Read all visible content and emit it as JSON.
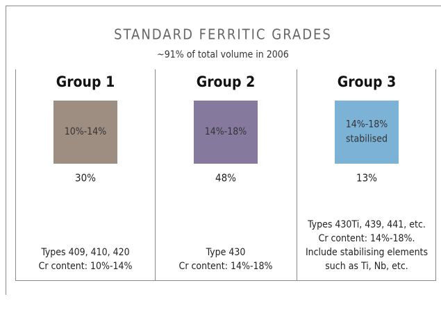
{
  "header": {
    "title": "STANDARD FERRITIC GRADES",
    "subtitle": "~91% of total volume in 2006"
  },
  "groups": [
    {
      "name": "Group 1",
      "color": "#9e8e82",
      "range": [
        "10%-14%"
      ],
      "share": "30%",
      "description": [
        "Types 409, 410, 420",
        "Cr content: 10%-14%"
      ]
    },
    {
      "name": "Group 2",
      "color": "#857a9e",
      "range": [
        "14%-18%"
      ],
      "share": "48%",
      "description": [
        "Type 430",
        "Cr content: 14%-18%"
      ]
    },
    {
      "name": "Group 3",
      "color": "#7cb2d6",
      "range": [
        "14%-18%",
        "stabilised"
      ],
      "share": "13%",
      "description": [
        "Types 430Ti, 439, 441, etc.",
        "Cr content: 14%-18%.",
        "Include stabilising elements",
        "such as Ti, Nb, etc."
      ]
    }
  ]
}
